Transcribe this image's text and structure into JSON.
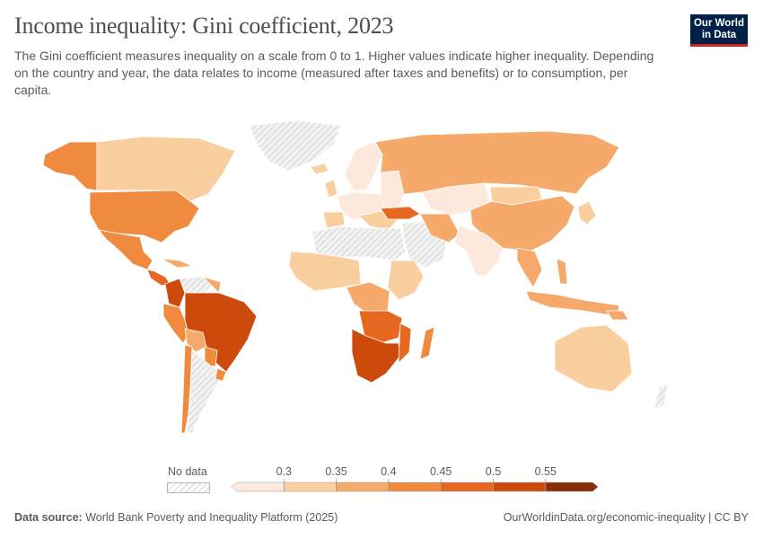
{
  "header": {
    "title": "Income inequality: Gini coefficient, 2023",
    "subtitle": "The Gini coefficient measures inequality on a scale from 0 to 1. Higher values indicate higher inequality. Depending on the country and year, the data relates to income (measured after taxes and benefits) or to consumption, per capita.",
    "logo_line1": "Our World",
    "logo_line2": "in Data"
  },
  "legend": {
    "no_data_label": "No data",
    "bins": [
      {
        "from": 0.25,
        "to": 0.3,
        "color": "#fde9dc"
      },
      {
        "from": 0.3,
        "to": 0.35,
        "color": "#f9cf9f"
      },
      {
        "from": 0.35,
        "to": 0.4,
        "color": "#f5a96a"
      },
      {
        "from": 0.4,
        "to": 0.45,
        "color": "#f08a3f"
      },
      {
        "from": 0.45,
        "to": 0.5,
        "color": "#e56720"
      },
      {
        "from": 0.5,
        "to": 0.55,
        "color": "#cc4a0b"
      },
      {
        "from": 0.55,
        "to": 0.6,
        "color": "#882d05"
      }
    ],
    "tick_labels": [
      "0.3",
      "0.35",
      "0.4",
      "0.45",
      "0.5",
      "0.55"
    ]
  },
  "colors": {
    "no_data": "#e4e4e4",
    "border": "#ffffff",
    "ocean": "#ffffff"
  },
  "footer": {
    "source_label": "Data source:",
    "source_text": "World Bank Poverty and Inequality Platform (2025)",
    "credit": "OurWorldinData.org/economic-inequality | CC BY"
  }
}
